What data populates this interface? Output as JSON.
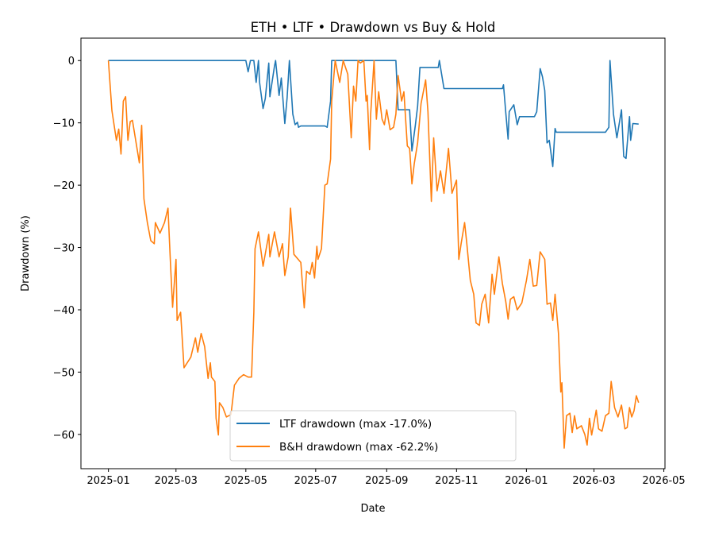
{
  "chart_data": {
    "type": "line",
    "title": "ETH • LTF • Drawdown vs Buy & Hold",
    "xlabel": "Date",
    "ylabel": "Drawdown (%)",
    "xlim": [
      "2024-12-08",
      "2026-05-02"
    ],
    "ylim": [
      -65.5,
      3.6
    ],
    "x_ticks": [
      "2025-01",
      "2025-03",
      "2025-05",
      "2025-07",
      "2025-09",
      "2025-11",
      "2026-01",
      "2026-03",
      "2026-05"
    ],
    "y_ticks": [
      0,
      -10,
      -20,
      -30,
      -40,
      -50,
      -60
    ],
    "grid": false,
    "legend_position": "lower center",
    "series": [
      {
        "name": "LTF drawdown (max -17.0%)",
        "color": "#1f77b4",
        "points": [
          [
            "2025-01-01",
            0
          ],
          [
            "2025-05-01",
            0
          ],
          [
            "2025-05-03",
            -1.8
          ],
          [
            "2025-05-05",
            0
          ],
          [
            "2025-05-08",
            0
          ],
          [
            "2025-05-10",
            -3.5
          ],
          [
            "2025-05-12",
            0
          ],
          [
            "2025-05-13",
            -3.5
          ],
          [
            "2025-05-16",
            -7.7
          ],
          [
            "2025-05-18",
            -6.1
          ],
          [
            "2025-05-21",
            -0.4
          ],
          [
            "2025-05-22",
            -5.8
          ],
          [
            "2025-05-26",
            -0.9
          ],
          [
            "2025-05-27",
            0
          ],
          [
            "2025-05-30",
            -5.6
          ],
          [
            "2025-06-01",
            -2.8
          ],
          [
            "2025-06-04",
            -10.1
          ],
          [
            "2025-06-06",
            -6
          ],
          [
            "2025-06-08",
            0
          ],
          [
            "2025-06-11",
            -8.6
          ],
          [
            "2025-06-13",
            -10.3
          ],
          [
            "2025-06-15",
            -9.9
          ],
          [
            "2025-06-16",
            -10.7
          ],
          [
            "2025-06-18",
            -10.5
          ],
          [
            "2025-07-09",
            -10.5
          ],
          [
            "2025-07-11",
            -10.7
          ],
          [
            "2025-07-14",
            -6.5
          ],
          [
            "2025-07-15",
            0
          ],
          [
            "2025-09-09",
            0
          ],
          [
            "2025-09-11",
            -7.9
          ],
          [
            "2025-09-21",
            -7.9
          ],
          [
            "2025-09-23",
            -14.5
          ],
          [
            "2025-09-26",
            -10.4
          ],
          [
            "2025-09-28",
            -7.3
          ],
          [
            "2025-09-30",
            -1.1
          ],
          [
            "2025-10-16",
            -1.1
          ],
          [
            "2025-10-17",
            0
          ],
          [
            "2025-10-21",
            -4.5
          ],
          [
            "2025-12-11",
            -4.5
          ],
          [
            "2025-12-12",
            -3.9
          ],
          [
            "2025-12-14",
            -8.4
          ],
          [
            "2025-12-16",
            -12.6
          ],
          [
            "2025-12-17",
            -8.2
          ],
          [
            "2025-12-21",
            -7.1
          ],
          [
            "2025-12-24",
            -10.3
          ],
          [
            "2025-12-26",
            -9
          ],
          [
            "2026-01-08",
            -9
          ],
          [
            "2026-01-10",
            -8.2
          ],
          [
            "2026-01-13",
            -1.3
          ],
          [
            "2026-01-15",
            -2.6
          ],
          [
            "2026-01-17",
            -4.8
          ],
          [
            "2026-01-19",
            -13.2
          ],
          [
            "2026-01-21",
            -12.8
          ],
          [
            "2026-01-24",
            -17.0
          ],
          [
            "2026-01-26",
            -10.9
          ],
          [
            "2026-01-27",
            -11.5
          ],
          [
            "2026-03-11",
            -11.5
          ],
          [
            "2026-03-14",
            -10.7
          ],
          [
            "2026-03-15",
            0
          ],
          [
            "2026-03-18",
            -8.6
          ],
          [
            "2026-03-21",
            -12.4
          ],
          [
            "2026-03-25",
            -7.9
          ],
          [
            "2026-03-27",
            -15.4
          ],
          [
            "2026-03-29",
            -15.7
          ],
          [
            "2026-04-01",
            -9
          ],
          [
            "2026-04-02",
            -12.8
          ],
          [
            "2026-04-04",
            -10.1
          ],
          [
            "2026-04-09",
            -10.2
          ]
        ]
      },
      {
        "name": "B&H drawdown (max -62.2%)",
        "color": "#ff7f0e",
        "points": [
          [
            "2025-01-01",
            0
          ],
          [
            "2025-01-04",
            -8
          ],
          [
            "2025-01-08",
            -12.8
          ],
          [
            "2025-01-10",
            -11
          ],
          [
            "2025-01-12",
            -15
          ],
          [
            "2025-01-14",
            -6.5
          ],
          [
            "2025-01-16",
            -5.8
          ],
          [
            "2025-01-18",
            -12.8
          ],
          [
            "2025-01-20",
            -9.8
          ],
          [
            "2025-01-22",
            -9.6
          ],
          [
            "2025-01-28",
            -16.4
          ],
          [
            "2025-01-30",
            -10.4
          ],
          [
            "2025-02-01",
            -22.2
          ],
          [
            "2025-02-04",
            -26
          ],
          [
            "2025-02-07",
            -28.9
          ],
          [
            "2025-02-10",
            -29.4
          ],
          [
            "2025-02-11",
            -26
          ],
          [
            "2025-02-15",
            -27.7
          ],
          [
            "2025-02-19",
            -26
          ],
          [
            "2025-02-22",
            -23.7
          ],
          [
            "2025-02-24",
            -31.9
          ],
          [
            "2025-02-26",
            -39.6
          ],
          [
            "2025-03-01",
            -31.9
          ],
          [
            "2025-03-02",
            -41.7
          ],
          [
            "2025-03-05",
            -40.4
          ],
          [
            "2025-03-08",
            -49.3
          ],
          [
            "2025-03-14",
            -47.6
          ],
          [
            "2025-03-18",
            -44.5
          ],
          [
            "2025-03-20",
            -46.8
          ],
          [
            "2025-03-23",
            -43.8
          ],
          [
            "2025-03-26",
            -45.9
          ],
          [
            "2025-03-29",
            -51
          ],
          [
            "2025-03-31",
            -48.5
          ],
          [
            "2025-04-01",
            -50.8
          ],
          [
            "2025-04-04",
            -51.5
          ],
          [
            "2025-04-05",
            -57.4
          ],
          [
            "2025-04-07",
            -60.1
          ],
          [
            "2025-04-08",
            -54.9
          ],
          [
            "2025-04-11",
            -55.7
          ],
          [
            "2025-04-14",
            -57.2
          ],
          [
            "2025-04-18",
            -56.8
          ],
          [
            "2025-04-21",
            -52.1
          ],
          [
            "2025-04-25",
            -51
          ],
          [
            "2025-04-29",
            -50.4
          ],
          [
            "2025-05-03",
            -50.8
          ],
          [
            "2025-05-06",
            -50.8
          ],
          [
            "2025-05-08",
            -40.4
          ],
          [
            "2025-05-09",
            -30.2
          ],
          [
            "2025-05-12",
            -27.5
          ],
          [
            "2025-05-16",
            -33
          ],
          [
            "2025-05-21",
            -27.9
          ],
          [
            "2025-05-22",
            -31.5
          ],
          [
            "2025-05-26",
            -27.5
          ],
          [
            "2025-05-30",
            -31.5
          ],
          [
            "2025-06-02",
            -29.4
          ],
          [
            "2025-06-04",
            -34.5
          ],
          [
            "2025-06-07",
            -31.5
          ],
          [
            "2025-06-09",
            -23.7
          ],
          [
            "2025-06-12",
            -31.1
          ],
          [
            "2025-06-18",
            -32.4
          ],
          [
            "2025-06-21",
            -39.7
          ],
          [
            "2025-06-23",
            -33.8
          ],
          [
            "2025-06-26",
            -34.3
          ],
          [
            "2025-06-28",
            -32.4
          ],
          [
            "2025-06-30",
            -34.9
          ],
          [
            "2025-07-02",
            -29.8
          ],
          [
            "2025-07-03",
            -31.9
          ],
          [
            "2025-07-06",
            -30.2
          ],
          [
            "2025-07-09",
            -20
          ],
          [
            "2025-07-11",
            -19.8
          ],
          [
            "2025-07-14",
            -15.8
          ],
          [
            "2025-07-15",
            -6.5
          ],
          [
            "2025-07-18",
            0
          ],
          [
            "2025-07-22",
            -3.5
          ],
          [
            "2025-07-25",
            0
          ],
          [
            "2025-07-29",
            -2.2
          ],
          [
            "2025-08-01",
            -12.4
          ],
          [
            "2025-08-03",
            -4.1
          ],
          [
            "2025-08-05",
            -6.5
          ],
          [
            "2025-08-07",
            0
          ],
          [
            "2025-08-09",
            -0.4
          ],
          [
            "2025-08-12",
            0
          ],
          [
            "2025-08-14",
            -6.5
          ],
          [
            "2025-08-15",
            -5.6
          ],
          [
            "2025-08-17",
            -14.3
          ],
          [
            "2025-08-18",
            -8.6
          ],
          [
            "2025-08-21",
            0
          ],
          [
            "2025-08-23",
            -9.4
          ],
          [
            "2025-08-25",
            -5
          ],
          [
            "2025-08-28",
            -9.4
          ],
          [
            "2025-08-30",
            -10.3
          ],
          [
            "2025-09-01",
            -7.9
          ],
          [
            "2025-09-04",
            -11.1
          ],
          [
            "2025-09-07",
            -10.7
          ],
          [
            "2025-09-09",
            -8.6
          ],
          [
            "2025-09-11",
            -2.4
          ],
          [
            "2025-09-14",
            -6.5
          ],
          [
            "2025-09-16",
            -5
          ],
          [
            "2025-09-19",
            -13.7
          ],
          [
            "2025-09-21",
            -14.1
          ],
          [
            "2025-09-23",
            -19.8
          ],
          [
            "2025-09-25",
            -16.6
          ],
          [
            "2025-09-28",
            -13.2
          ],
          [
            "2025-10-01",
            -6.9
          ],
          [
            "2025-10-05",
            -3.1
          ],
          [
            "2025-10-07",
            -8.2
          ],
          [
            "2025-10-10",
            -22.6
          ],
          [
            "2025-10-12",
            -12.4
          ],
          [
            "2025-10-15",
            -20.9
          ],
          [
            "2025-10-18",
            -17.7
          ],
          [
            "2025-10-21",
            -21.3
          ],
          [
            "2025-10-25",
            -14.1
          ],
          [
            "2025-10-28",
            -21.3
          ],
          [
            "2025-11-01",
            -19.2
          ],
          [
            "2025-11-03",
            -31.9
          ],
          [
            "2025-11-05",
            -29.4
          ],
          [
            "2025-11-08",
            -26
          ],
          [
            "2025-11-10",
            -29.4
          ],
          [
            "2025-11-13",
            -35.3
          ],
          [
            "2025-11-16",
            -37.5
          ],
          [
            "2025-11-18",
            -42.1
          ],
          [
            "2025-11-21",
            -42.5
          ],
          [
            "2025-11-23",
            -39.1
          ],
          [
            "2025-11-26",
            -37.5
          ],
          [
            "2025-11-29",
            -42.1
          ],
          [
            "2025-12-02",
            -34.3
          ],
          [
            "2025-12-04",
            -37.5
          ],
          [
            "2025-12-08",
            -31.5
          ],
          [
            "2025-12-11",
            -35.8
          ],
          [
            "2025-12-14",
            -38.7
          ],
          [
            "2025-12-16",
            -41.5
          ],
          [
            "2025-12-18",
            -38.3
          ],
          [
            "2025-12-21",
            -37.9
          ],
          [
            "2025-12-24",
            -40
          ],
          [
            "2025-12-28",
            -38.9
          ],
          [
            "2026-01-01",
            -35.3
          ],
          [
            "2026-01-04",
            -31.9
          ],
          [
            "2026-01-07",
            -36.2
          ],
          [
            "2026-01-10",
            -36.1
          ],
          [
            "2026-01-13",
            -30.7
          ],
          [
            "2026-01-17",
            -31.9
          ],
          [
            "2026-01-19",
            -39.1
          ],
          [
            "2026-01-22",
            -38.9
          ],
          [
            "2026-01-24",
            -41.7
          ],
          [
            "2026-01-26",
            -37.5
          ],
          [
            "2026-01-29",
            -43.8
          ],
          [
            "2026-01-31",
            -53.2
          ],
          [
            "2026-02-01",
            -51.7
          ],
          [
            "2026-02-03",
            -62.2
          ],
          [
            "2026-02-05",
            -57
          ],
          [
            "2026-02-08",
            -56.6
          ],
          [
            "2026-02-10",
            -59.7
          ],
          [
            "2026-02-12",
            -57
          ],
          [
            "2026-02-14",
            -59.1
          ],
          [
            "2026-02-18",
            -58.6
          ],
          [
            "2026-02-21",
            -60
          ],
          [
            "2026-02-23",
            -61.7
          ],
          [
            "2026-02-25",
            -57.4
          ],
          [
            "2026-02-27",
            -60.1
          ],
          [
            "2026-03-03",
            -56.1
          ],
          [
            "2026-03-05",
            -59.1
          ],
          [
            "2026-03-08",
            -59.5
          ],
          [
            "2026-03-11",
            -57
          ],
          [
            "2026-03-14",
            -56.6
          ],
          [
            "2026-03-16",
            -51.5
          ],
          [
            "2026-03-19",
            -55.7
          ],
          [
            "2026-03-22",
            -57.2
          ],
          [
            "2026-03-25",
            -55.3
          ],
          [
            "2026-03-28",
            -59.1
          ],
          [
            "2026-03-30",
            -58.9
          ],
          [
            "2026-04-01",
            -55.7
          ],
          [
            "2026-04-03",
            -57.2
          ],
          [
            "2026-04-05",
            -56.2
          ],
          [
            "2026-04-07",
            -53.8
          ],
          [
            "2026-04-09",
            -54.9
          ]
        ]
      }
    ]
  }
}
